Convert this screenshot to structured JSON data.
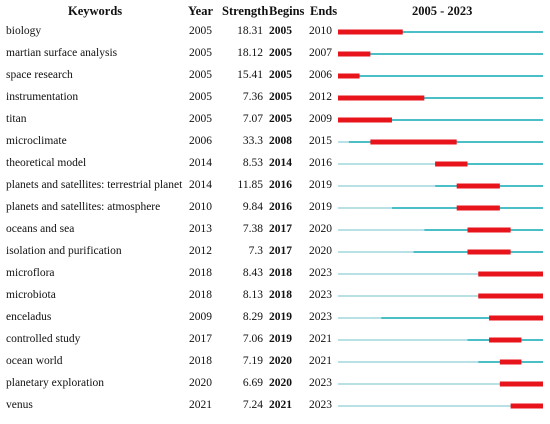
{
  "chart_data": {
    "type": "table",
    "range_label": "2005 - 2023",
    "range": [
      2005,
      2023
    ],
    "headers": {
      "keywords": "Keywords",
      "year": "Year",
      "strength": "Strength",
      "begins": "Begins",
      "ends": "Ends"
    },
    "colors": {
      "burst": "#e8141b",
      "timeline_active": "#4bbfc8",
      "timeline_inactive": "#b8e1e6"
    },
    "rows": [
      {
        "keyword": "biology",
        "year": "2005",
        "strength": "18.31",
        "begin": "2005",
        "end": "2010"
      },
      {
        "keyword": "martian surface analysis",
        "year": "2005",
        "strength": "18.12",
        "begin": "2005",
        "end": "2007"
      },
      {
        "keyword": "space research",
        "year": "2005",
        "strength": "15.41",
        "begin": "2005",
        "end": "2006"
      },
      {
        "keyword": "instrumentation",
        "year": "2005",
        "strength": "7.36",
        "begin": "2005",
        "end": "2012"
      },
      {
        "keyword": "titan",
        "year": "2005",
        "strength": "7.07",
        "begin": "2005",
        "end": "2009"
      },
      {
        "keyword": "microclimate",
        "year": "2006",
        "strength": "33.3",
        "begin": "2008",
        "end": "2015"
      },
      {
        "keyword": "theoretical model",
        "year": "2014",
        "strength": "8.53",
        "begin": "2014",
        "end": "2016"
      },
      {
        "keyword": "planets and satellites: terrestrial planet",
        "year": "2014",
        "strength": "11.85",
        "begin": "2016",
        "end": "2019"
      },
      {
        "keyword": "planets and satellites: atmosphere",
        "year": "2010",
        "strength": "9.84",
        "begin": "2016",
        "end": "2019"
      },
      {
        "keyword": "oceans and sea",
        "year": "2013",
        "strength": "7.38",
        "begin": "2017",
        "end": "2020"
      },
      {
        "keyword": "isolation and purification",
        "year": "2012",
        "strength": "7.3",
        "begin": "2017",
        "end": "2020"
      },
      {
        "keyword": "microflora",
        "year": "2018",
        "strength": "8.43",
        "begin": "2018",
        "end": "2023"
      },
      {
        "keyword": "microbiota",
        "year": "2018",
        "strength": "8.13",
        "begin": "2018",
        "end": "2023"
      },
      {
        "keyword": "enceladus",
        "year": "2009",
        "strength": "8.29",
        "begin": "2019",
        "end": "2023"
      },
      {
        "keyword": "controlled study",
        "year": "2017",
        "strength": "7.06",
        "begin": "2019",
        "end": "2021"
      },
      {
        "keyword": "ocean world",
        "year": "2018",
        "strength": "7.19",
        "begin": "2020",
        "end": "2021"
      },
      {
        "keyword": "planetary exploration",
        "year": "2020",
        "strength": "6.69",
        "begin": "2020",
        "end": "2023"
      },
      {
        "keyword": "venus",
        "year": "2021",
        "strength": "7.24",
        "begin": "2021",
        "end": "2023"
      }
    ]
  }
}
